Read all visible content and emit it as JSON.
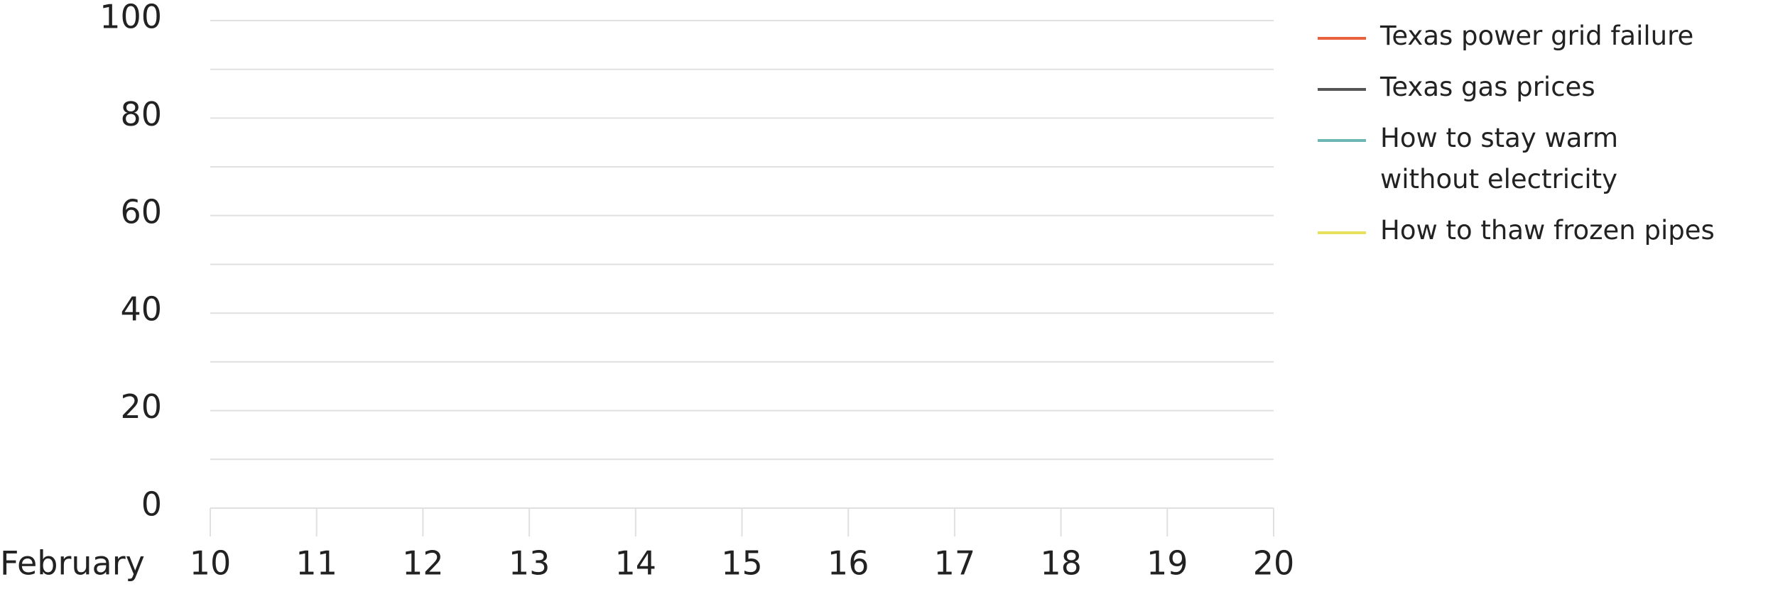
{
  "chart_data": {
    "type": "line",
    "x_label": "February",
    "x": [
      10,
      11,
      12,
      13,
      14,
      15,
      16,
      17,
      18,
      19,
      20
    ],
    "xlim": [
      10,
      20
    ],
    "xticks": [
      10,
      11,
      12,
      13,
      14,
      15,
      16,
      17,
      18,
      19,
      20
    ],
    "ylim": [
      0,
      100
    ],
    "yticks": [
      0,
      20,
      40,
      60,
      80,
      100
    ],
    "minor_yticks": [
      10,
      30,
      50,
      70,
      90
    ],
    "grid": true,
    "legend": "right",
    "series": [
      {
        "name": "Texas power grid failure",
        "color": "#e8603c",
        "values": [
          null,
          null,
          null,
          null,
          null,
          null,
          null,
          null,
          null,
          null,
          null
        ]
      },
      {
        "name": "Texas gas prices",
        "color": "#555555",
        "values": [
          null,
          null,
          null,
          null,
          null,
          null,
          null,
          null,
          null,
          null,
          null
        ]
      },
      {
        "name": "How to stay warm without electricity",
        "color": "#6cb7b3",
        "values": [
          null,
          null,
          null,
          null,
          null,
          null,
          null,
          null,
          null,
          null,
          null
        ]
      },
      {
        "name": "How to thaw frozen pipes",
        "color": "#e6e05a",
        "values": [
          null,
          null,
          null,
          null,
          null,
          null,
          null,
          null,
          null,
          null,
          null
        ]
      }
    ]
  }
}
